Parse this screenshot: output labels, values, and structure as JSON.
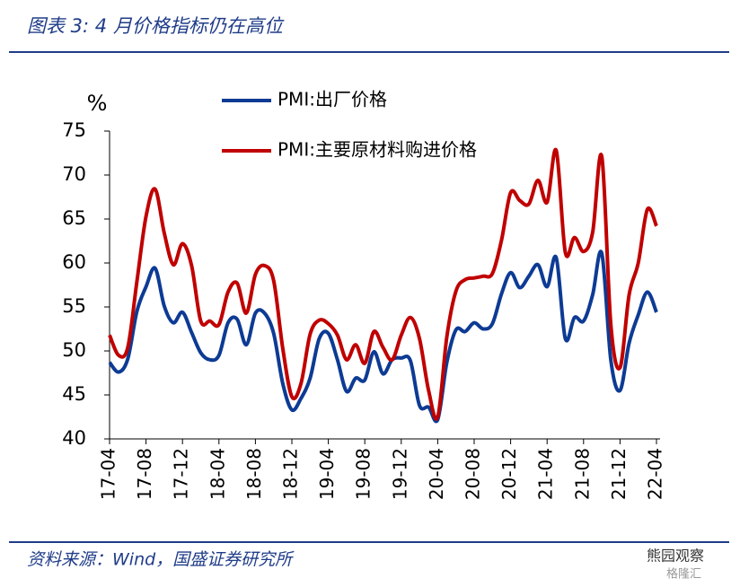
{
  "chart_data": {
    "type": "line",
    "title": "图表 3:  4 月价格指标仍在高位",
    "y_label": "%",
    "source": "资料来源：Wind，国盛证券研究所",
    "watermark": "熊园观察",
    "watermark2": "格隆汇",
    "categories": [
      "17-04",
      null,
      null,
      null,
      "17-08",
      null,
      null,
      null,
      "17-12",
      null,
      null,
      null,
      "18-04",
      null,
      null,
      null,
      "18-08",
      null,
      null,
      null,
      "18-12",
      null,
      null,
      null,
      "19-04",
      null,
      null,
      null,
      "19-08",
      null,
      null,
      null,
      "19-12",
      null,
      null,
      null,
      "20-04",
      null,
      null,
      null,
      "20-08",
      null,
      null,
      null,
      "20-12",
      null,
      null,
      null,
      "21-04",
      null,
      null,
      null,
      "21-08",
      null,
      null,
      null,
      "21-12",
      null,
      null,
      null,
      "22-04"
    ],
    "series": [
      {
        "name": "PMI:出厂价格",
        "color": "#0d3b94",
        "values": [
          48.7,
          47.6,
          49.1,
          54.5,
          57.3,
          59.4,
          55.1,
          53.2,
          54.4,
          52.1,
          49.8,
          49.0,
          49.5,
          53.2,
          53.6,
          50.7,
          54.3,
          54.3,
          52.0,
          46.3,
          43.3,
          44.6,
          46.9,
          51.4,
          52.0,
          49.0,
          45.4,
          46.9,
          46.7,
          49.9,
          47.4,
          49.0,
          49.2,
          48.9,
          43.8,
          43.6,
          42.2,
          48.7,
          52.4,
          52.2,
          53.2,
          52.5,
          53.1,
          56.5,
          58.9,
          57.2,
          58.5,
          59.8,
          57.3,
          60.6,
          51.4,
          53.8,
          53.4,
          56.4,
          61.1,
          48.9,
          45.5,
          50.9,
          54.1,
          56.7,
          54.4
        ]
      },
      {
        "name": "PMI:主要原材料购进价格",
        "color": "#c00000",
        "values": [
          51.8,
          49.5,
          50.4,
          57.9,
          65.3,
          68.4,
          63.4,
          59.8,
          62.2,
          59.7,
          53.4,
          53.4,
          53.0,
          56.7,
          57.7,
          54.3,
          58.7,
          59.7,
          58.0,
          50.3,
          44.8,
          46.3,
          51.9,
          53.5,
          53.1,
          51.8,
          49.0,
          50.7,
          48.6,
          52.2,
          50.4,
          49.0,
          51.8,
          53.8,
          51.4,
          45.5,
          42.5,
          51.6,
          56.8,
          58.1,
          58.3,
          58.5,
          58.8,
          62.6,
          68.0,
          67.1,
          66.7,
          69.4,
          66.9,
          72.8,
          61.2,
          62.9,
          61.3,
          63.5,
          72.1,
          52.9,
          48.1,
          56.4,
          60.0,
          66.1,
          64.2
        ]
      }
    ],
    "ylim": [
      40,
      75
    ],
    "yticks": [
      40,
      45,
      50,
      55,
      60,
      65,
      70,
      75
    ],
    "legend": "upper-left",
    "grid": false
  }
}
